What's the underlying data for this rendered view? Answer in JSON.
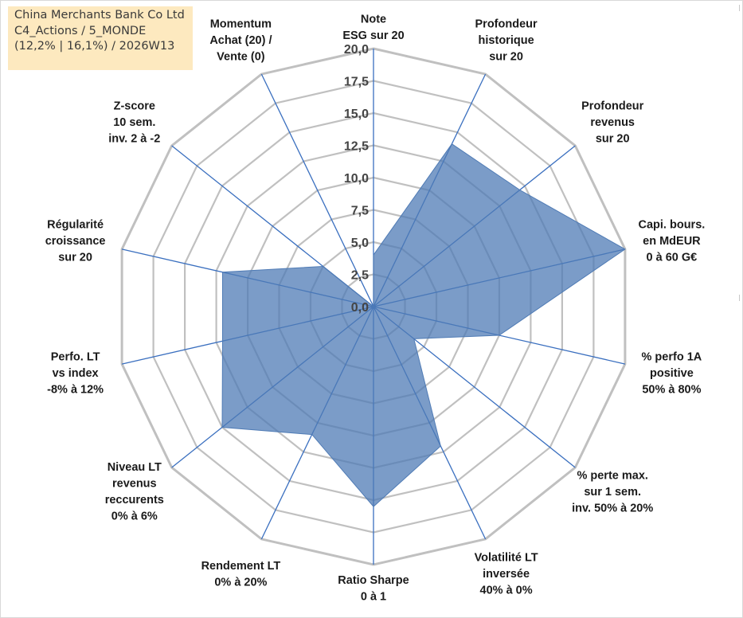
{
  "title": {
    "line1": "China Merchants Bank Co Ltd",
    "line2": "C4_Actions / 5_MONDE",
    "line3": "(12,2% | 16,1%) / 2026W13"
  },
  "colors": {
    "fill": "#4f7bb5",
    "fill_opacity": 0.75,
    "spoke": "#3a6fbf",
    "grid": "#c0c0c0",
    "text": "#1a1a1a"
  },
  "chart_data": {
    "type": "radar",
    "rmin": 0,
    "rmax": 20,
    "tick_labels": [
      "0,0",
      "2,5",
      "5,0",
      "7,5",
      "10,0",
      "12,5",
      "15,0",
      "17,5",
      "20,0"
    ],
    "axes": [
      {
        "label": [
          "Note",
          "ESG sur 20"
        ],
        "value": 4
      },
      {
        "label": [
          "Profondeur",
          "historique",
          "sur 20"
        ],
        "value": 14
      },
      {
        "label": [
          "Profondeur",
          "revenus",
          "sur 20"
        ],
        "value": 14.5
      },
      {
        "label": [
          "Capi. bours.",
          "en MdEUR",
          "0 à 60 G€"
        ],
        "value": 20
      },
      {
        "label": [
          "% perfo 1A",
          "positive",
          "50% à 80%"
        ],
        "value": 10
      },
      {
        "label": [
          "% perte max.",
          "sur 1 sem.",
          "inv. 50% à 20%"
        ],
        "value": 4
      },
      {
        "label": [
          "Volatilité LT",
          "inversée",
          "40% à 0%"
        ],
        "value": 12
      },
      {
        "label": [
          "Ratio Sharpe",
          "0 à 1"
        ],
        "value": 15.5
      },
      {
        "label": [
          "Rendement LT",
          "0% à 20%"
        ],
        "value": 11
      },
      {
        "label": [
          "Niveau LT",
          "revenus",
          "reccurents",
          "0% à 6%"
        ],
        "value": 15
      },
      {
        "label": [
          "Perfo. LT",
          "vs index",
          "-8% à 12%"
        ],
        "value": 12
      },
      {
        "label": [
          "Régularité",
          "croissance",
          "sur 20"
        ],
        "value": 12
      },
      {
        "label": [
          "Z-score",
          "10 sem.",
          "inv. 2 à -2"
        ],
        "value": 5
      },
      {
        "label": [
          "Momentum",
          "Achat (20) /",
          "Vente (0)"
        ],
        "value": 0
      }
    ]
  }
}
